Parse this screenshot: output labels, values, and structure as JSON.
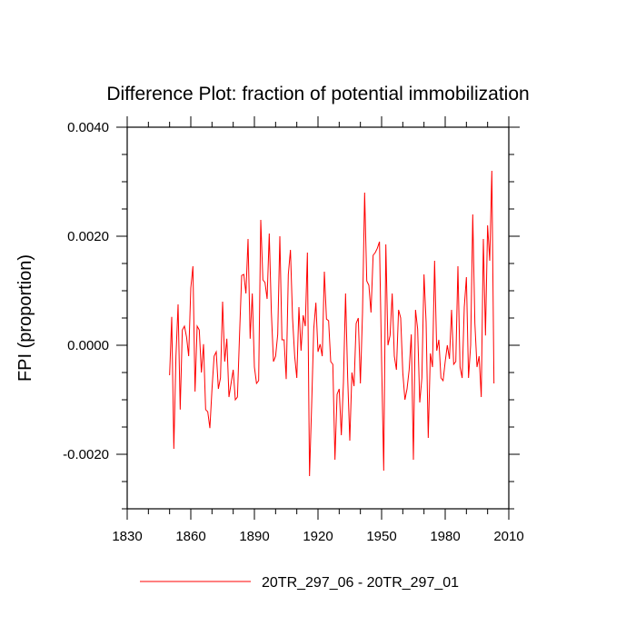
{
  "chart_data": {
    "type": "line",
    "title": "Difference Plot: fraction of potential immobilization",
    "xlabel": "",
    "ylabel": "FPI  (proportion)",
    "xlim": [
      1830,
      2010
    ],
    "ylim": [
      -0.003,
      0.004
    ],
    "x_ticks": [
      1830,
      1860,
      1890,
      1920,
      1950,
      1980,
      2010
    ],
    "x_tick_labels": [
      "1830",
      "1860",
      "1890",
      "1920",
      "1950",
      "1980",
      "2010"
    ],
    "y_ticks": [
      -0.002,
      0.0,
      0.002,
      0.004
    ],
    "y_tick_labels": [
      "-0.0020",
      "0.0000",
      "0.0020",
      "0.0040"
    ],
    "series_color": "#ff0000",
    "legend": {
      "label": "20TR_297_06 - 20TR_297_01",
      "placement": "bottom-center"
    },
    "series": [
      {
        "name": "20TR_297_06 - 20TR_297_01",
        "x_start": 1850,
        "x_step": 1,
        "values": [
          -0.00055,
          0.00052,
          -0.0019,
          -0.0002,
          0.00075,
          -0.00118,
          0.00028,
          0.00035,
          0.00015,
          -0.0002,
          0.00105,
          0.00145,
          -0.00085,
          0.00035,
          0.00028,
          -0.0005,
          2e-05,
          -0.00118,
          -0.00122,
          -0.00152,
          -0.0008,
          -0.0002,
          -0.00012,
          -0.0008,
          -0.0006,
          0.0008,
          -0.0003,
          0.00012,
          -0.00095,
          -0.0007,
          -0.00045,
          -0.001,
          -0.00095,
          0.0002,
          0.00128,
          0.0013,
          0.00095,
          0.00195,
          0.00012,
          0.00095,
          -0.0004,
          -0.0007,
          -0.00065,
          0.0023,
          0.0012,
          0.00115,
          0.00085,
          0.00205,
          0.0006,
          -0.0003,
          -0.0002,
          0.0002,
          0.002,
          0.0001,
          0.0001,
          -0.00062,
          0.0013,
          0.00175,
          0.0005,
          -0.0002,
          -0.0006,
          0.0007,
          -0.0001,
          0.00055,
          0.00035,
          0.0017,
          -0.0024,
          -0.0011,
          0.0003,
          0.00078,
          -0.00012,
          2e-05,
          -0.0002,
          0.00135,
          0.00048,
          0.00045,
          -0.0003,
          -0.00035,
          -0.0021,
          -0.0009,
          -0.0008,
          -0.00165,
          -0.00068,
          0.00095,
          -0.0006,
          -0.00175,
          -0.0005,
          -0.00075,
          0.0004,
          0.0005,
          -0.0007,
          0.0006,
          0.0028,
          0.00118,
          0.0011,
          0.0006,
          0.00165,
          0.0017,
          0.00178,
          0.0019,
          -0.0003,
          -0.0023,
          0.00185,
          0.0,
          0.00018,
          0.00095,
          -0.0002,
          -0.00045,
          0.00065,
          0.0005,
          -0.0005,
          -0.001,
          -0.0008,
          -0.00045,
          0.0002,
          -0.0021,
          0.00065,
          0.0003,
          -0.00105,
          -0.0006,
          0.0013,
          0.00042,
          -0.0017,
          -0.00015,
          -0.0004,
          0.00155,
          -0.0001,
          0.0001,
          -0.0006,
          -0.00065,
          -0.0003,
          0.0,
          -0.00025,
          0.00065,
          -0.00035,
          -0.0003,
          0.00145,
          -0.0004,
          -0.0006,
          0.0007,
          0.00125,
          -0.0006,
          0.0,
          0.0024,
          0.0004,
          -0.0004,
          -0.0002,
          -0.00095,
          0.00195,
          0.00018,
          0.0022,
          0.00155,
          0.0032,
          -0.0007
        ]
      }
    ]
  }
}
